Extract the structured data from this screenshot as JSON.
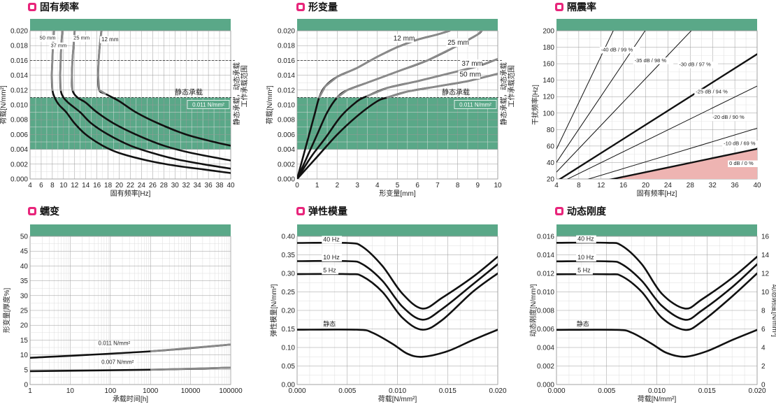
{
  "colors": {
    "accent": "#e8257b",
    "green": "#5aa888",
    "pink": "#eeb4b2",
    "dark": "#111111",
    "gray": "#888888"
  },
  "chart_data": [
    {
      "id": "c1",
      "type": "line",
      "title": "固有频率",
      "xlabel": "固有频率[Hz]",
      "ylabel": "荷载[N/mm²]",
      "x_ticks": [
        4,
        6,
        8,
        10,
        12,
        14,
        16,
        18,
        20,
        22,
        24,
        26,
        28,
        30,
        32,
        34,
        36,
        38,
        40
      ],
      "y_ticks": [
        "0.000",
        "0.002",
        "0.004",
        "0.006",
        "0.008",
        "0.010",
        "0.012",
        "0.014",
        "0.016",
        "0.018",
        "0.020"
      ],
      "xlim": [
        4,
        40
      ],
      "ylim": [
        0,
        0.02
      ],
      "band": {
        "range": [
          0.004,
          0.011
        ],
        "label": "0.011 N/mm²",
        "dashed_top": 0.016,
        "right_label_1": "工作承载范围",
        "right_label_2": "静态承载，动态承载",
        "static_label": "静态承载"
      },
      "series": [
        {
          "name": "50 mm",
          "points": [
            [
              8.3,
              0.02
            ],
            [
              8.1,
              0.018
            ],
            [
              8.0,
              0.016
            ],
            [
              7.9,
              0.014
            ],
            [
              8.0,
              0.012
            ],
            [
              8.4,
              0.011
            ],
            [
              9.2,
              0.01
            ],
            [
              10.5,
              0.009
            ],
            [
              12,
              0.0075
            ],
            [
              14,
              0.006
            ],
            [
              17,
              0.0045
            ],
            [
              20,
              0.0035
            ],
            [
              25,
              0.0025
            ],
            [
              30,
              0.0018
            ],
            [
              35,
              0.0013
            ],
            [
              40,
              0.0008
            ]
          ]
        },
        {
          "name": "37 mm",
          "points": [
            [
              9.8,
              0.02
            ],
            [
              9.6,
              0.018
            ],
            [
              9.5,
              0.016
            ],
            [
              9.4,
              0.014
            ],
            [
              9.5,
              0.012
            ],
            [
              10,
              0.011
            ],
            [
              11,
              0.0102
            ],
            [
              13,
              0.009
            ],
            [
              15,
              0.0075
            ],
            [
              18,
              0.006
            ],
            [
              22,
              0.0045
            ],
            [
              26,
              0.0035
            ],
            [
              30,
              0.0027
            ],
            [
              35,
              0.002
            ],
            [
              40,
              0.0014
            ]
          ]
        },
        {
          "name": "25 mm",
          "points": [
            [
              12.0,
              0.02
            ],
            [
              11.8,
              0.018
            ],
            [
              11.6,
              0.016
            ],
            [
              11.5,
              0.014
            ],
            [
              11.6,
              0.012
            ],
            [
              12.5,
              0.011
            ],
            [
              14,
              0.0103
            ],
            [
              16,
              0.009
            ],
            [
              19,
              0.0075
            ],
            [
              23,
              0.006
            ],
            [
              28,
              0.0045
            ],
            [
              33,
              0.0035
            ],
            [
              40,
              0.0025
            ]
          ]
        },
        {
          "name": "12 mm",
          "points": [
            [
              16.8,
              0.02
            ],
            [
              16.5,
              0.018
            ],
            [
              16.3,
              0.016
            ],
            [
              16.2,
              0.014
            ],
            [
              16.4,
              0.012
            ],
            [
              17.5,
              0.0115
            ],
            [
              20,
              0.0105
            ],
            [
              23,
              0.009
            ],
            [
              27,
              0.0075
            ],
            [
              32,
              0.006
            ],
            [
              37,
              0.005
            ],
            [
              40,
              0.0045
            ]
          ]
        }
      ]
    },
    {
      "id": "c2",
      "type": "line",
      "title": "形变量",
      "xlabel": "形变量[mm]",
      "ylabel": "荷载[N/mm²]",
      "x_ticks": [
        0,
        1,
        2,
        3,
        4,
        5,
        6,
        7,
        8,
        9,
        10
      ],
      "y_ticks": [
        "0.000",
        "0.002",
        "0.004",
        "0.006",
        "0.008",
        "0.010",
        "0.012",
        "0.014",
        "0.016",
        "0.018",
        "0.020"
      ],
      "xlim": [
        0,
        10
      ],
      "ylim": [
        0,
        0.02
      ],
      "band": {
        "range": [
          0.004,
          0.011
        ],
        "label": "0.011 N/mm²",
        "dashed_top": 0.016,
        "right_label_1": "工作承载范围",
        "right_label_2": "静态承载，动态承载",
        "static_label": "静态承载"
      },
      "series": [
        {
          "name": "12 mm",
          "points": [
            [
              0,
              0
            ],
            [
              0.3,
              0.003
            ],
            [
              0.6,
              0.006
            ],
            [
              0.9,
              0.009
            ],
            [
              1.1,
              0.011
            ],
            [
              1.4,
              0.0125
            ],
            [
              2,
              0.0138
            ],
            [
              3,
              0.015
            ],
            [
              4,
              0.0165
            ],
            [
              5,
              0.0178
            ],
            [
              6,
              0.0188
            ],
            [
              7,
              0.0195
            ],
            [
              7.6,
              0.02
            ]
          ]
        },
        {
          "name": "25 mm",
          "points": [
            [
              0,
              0
            ],
            [
              0.5,
              0.003
            ],
            [
              1,
              0.006
            ],
            [
              1.5,
              0.009
            ],
            [
              2,
              0.011
            ],
            [
              2.5,
              0.012
            ],
            [
              3.5,
              0.013
            ],
            [
              5,
              0.0145
            ],
            [
              6.5,
              0.016
            ],
            [
              8,
              0.018
            ],
            [
              9,
              0.0195
            ],
            [
              9.2,
              0.02
            ]
          ]
        },
        {
          "name": "37 mm",
          "points": [
            [
              0,
              0
            ],
            [
              0.7,
              0.003
            ],
            [
              1.4,
              0.0055
            ],
            [
              2.2,
              0.0085
            ],
            [
              3,
              0.0105
            ],
            [
              3.5,
              0.0112
            ],
            [
              4.5,
              0.0123
            ],
            [
              6,
              0.0132
            ],
            [
              7.5,
              0.0142
            ],
            [
              9,
              0.0152
            ],
            [
              10,
              0.0162
            ]
          ]
        },
        {
          "name": "50 mm",
          "points": [
            [
              0,
              0
            ],
            [
              1,
              0.003
            ],
            [
              2,
              0.006
            ],
            [
              3,
              0.0085
            ],
            [
              4,
              0.0105
            ],
            [
              4.5,
              0.011
            ],
            [
              5.5,
              0.0118
            ],
            [
              7,
              0.0125
            ],
            [
              8.5,
              0.0132
            ],
            [
              10,
              0.0142
            ]
          ]
        }
      ]
    },
    {
      "id": "c3",
      "type": "line",
      "title": "隔震率",
      "xlabel": "固有频率[Hz]",
      "ylabel": "干扰频率[Hz]",
      "x_ticks": [
        4,
        8,
        12,
        16,
        20,
        24,
        28,
        32,
        36,
        40
      ],
      "y_ticks": [
        20,
        40,
        60,
        80,
        100,
        120,
        140,
        160,
        180,
        200
      ],
      "xlim": [
        4,
        40
      ],
      "ylim": [
        20,
        200
      ],
      "series": [
        {
          "name": "-40 dB / 99 %",
          "k": 14.1,
          "bold": false
        },
        {
          "name": "-35 dB / 98 %",
          "k": 10.05,
          "bold": false
        },
        {
          "name": "-30 dB / 97 %",
          "k": 7.1,
          "bold": false
        },
        {
          "name": "-25 dB / 94 %",
          "k": 4.29,
          "bold": true
        },
        {
          "name": "-20 dB / 90 %",
          "k": 3.32,
          "bold": false
        },
        {
          "name": "-10 dB / 69 %",
          "k": 2.04,
          "bold": false
        },
        {
          "name": "0 dB / 0 %",
          "k": 1.414,
          "bold": true
        }
      ]
    },
    {
      "id": "c4",
      "type": "line",
      "title": "蠕变",
      "xlabel": "承载时间[h]",
      "ylabel": "形变量[厚度%]",
      "x_ticks": [
        "1",
        "10",
        "100",
        "1000",
        "10000",
        "100000"
      ],
      "y_ticks": [
        "0",
        "5",
        "10",
        "15",
        "20",
        "25",
        "30",
        "35",
        "40",
        "45",
        "50"
      ],
      "xlim": [
        1,
        100000
      ],
      "ylim": [
        0,
        50
      ],
      "xscale": "log",
      "series": [
        {
          "name": "0.011 N/mm²",
          "points": [
            [
              1,
              9
            ],
            [
              1000,
              11.2
            ],
            [
              100000,
              13.5
            ]
          ]
        },
        {
          "name": "0.007 N/mm²",
          "points": [
            [
              1,
              4.5
            ],
            [
              1000,
              5
            ],
            [
              100000,
              5.7
            ]
          ]
        }
      ]
    },
    {
      "id": "c5",
      "type": "line",
      "title": "弹性模量",
      "xlabel": "荷载[N/mm²]",
      "ylabel": "弹性模量[N/mm²]",
      "x_ticks": [
        "0.000",
        "0.005",
        "0.010",
        "0.015",
        "0.020"
      ],
      "y_ticks": [
        "0.00",
        "0.05",
        "0.10",
        "0.15",
        "0.20",
        "0.25",
        "0.30",
        "0.35",
        "0.40"
      ],
      "xlim": [
        0,
        0.02
      ],
      "ylim": [
        0,
        0.4
      ],
      "series": [
        {
          "name": "40 Hz",
          "points": [
            [
              0,
              0.382
            ],
            [
              0.005,
              0.382
            ],
            [
              0.0065,
              0.372
            ],
            [
              0.0085,
              0.32
            ],
            [
              0.0105,
              0.245
            ],
            [
              0.0125,
              0.205
            ],
            [
              0.0145,
              0.235
            ],
            [
              0.0175,
              0.29
            ],
            [
              0.02,
              0.345
            ]
          ]
        },
        {
          "name": "10 Hz",
          "points": [
            [
              0,
              0.333
            ],
            [
              0.005,
              0.333
            ],
            [
              0.0065,
              0.325
            ],
            [
              0.0085,
              0.28
            ],
            [
              0.0105,
              0.21
            ],
            [
              0.0125,
              0.175
            ],
            [
              0.0145,
              0.205
            ],
            [
              0.0175,
              0.27
            ],
            [
              0.02,
              0.325
            ]
          ]
        },
        {
          "name": "5 Hz",
          "points": [
            [
              0,
              0.298
            ],
            [
              0.005,
              0.298
            ],
            [
              0.0065,
              0.292
            ],
            [
              0.0085,
              0.25
            ],
            [
              0.0105,
              0.18
            ],
            [
              0.0125,
              0.148
            ],
            [
              0.0145,
              0.175
            ],
            [
              0.0175,
              0.25
            ],
            [
              0.02,
              0.3
            ]
          ]
        },
        {
          "name": "静态",
          "points": [
            [
              0,
              0.148
            ],
            [
              0.006,
              0.148
            ],
            [
              0.0075,
              0.14
            ],
            [
              0.0095,
              0.11
            ],
            [
              0.011,
              0.083
            ],
            [
              0.0125,
              0.075
            ],
            [
              0.015,
              0.09
            ],
            [
              0.0175,
              0.12
            ],
            [
              0.02,
              0.148
            ]
          ]
        }
      ]
    },
    {
      "id": "c6",
      "type": "line",
      "title": "动态刚度",
      "xlabel": "荷载[N/mm²]",
      "ylabel": "动态刚度[N/mm³]",
      "ylabel2": "动态刚度[N/mm³]",
      "x_ticks": [
        "0.000",
        "0.005",
        "0.010",
        "0.015",
        "0.020"
      ],
      "y_ticks": [
        "0.000",
        "0.002",
        "0.004",
        "0.006",
        "0.008",
        "0.010",
        "0.012",
        "0.014",
        "0.016"
      ],
      "y2_ticks": [
        "0",
        "2",
        "4",
        "6",
        "8",
        "10",
        "12",
        "14",
        "16"
      ],
      "xlim": [
        0,
        0.02
      ],
      "ylim": [
        0,
        0.016
      ],
      "series": [
        {
          "name": "40 Hz",
          "points": [
            [
              0,
              0.0153
            ],
            [
              0.005,
              0.0153
            ],
            [
              0.0065,
              0.015
            ],
            [
              0.0085,
              0.013
            ],
            [
              0.0105,
              0.0098
            ],
            [
              0.0128,
              0.0082
            ],
            [
              0.0145,
              0.0092
            ],
            [
              0.0175,
              0.0115
            ],
            [
              0.02,
              0.0138
            ]
          ]
        },
        {
          "name": "10 Hz",
          "points": [
            [
              0,
              0.0133
            ],
            [
              0.005,
              0.0133
            ],
            [
              0.0065,
              0.013
            ],
            [
              0.0085,
              0.0112
            ],
            [
              0.0105,
              0.0085
            ],
            [
              0.0128,
              0.007
            ],
            [
              0.0145,
              0.008
            ],
            [
              0.0175,
              0.0105
            ],
            [
              0.02,
              0.013
            ]
          ]
        },
        {
          "name": "5 Hz",
          "points": [
            [
              0,
              0.0119
            ],
            [
              0.005,
              0.0119
            ],
            [
              0.0065,
              0.0117
            ],
            [
              0.0085,
              0.01
            ],
            [
              0.0105,
              0.0072
            ],
            [
              0.0128,
              0.0059
            ],
            [
              0.0145,
              0.0068
            ],
            [
              0.0175,
              0.0095
            ],
            [
              0.02,
              0.012
            ]
          ]
        },
        {
          "name": "静态",
          "points": [
            [
              0,
              0.0059
            ],
            [
              0.006,
              0.0059
            ],
            [
              0.0075,
              0.0056
            ],
            [
              0.0095,
              0.0044
            ],
            [
              0.011,
              0.0034
            ],
            [
              0.0128,
              0.003
            ],
            [
              0.015,
              0.0036
            ],
            [
              0.0175,
              0.0048
            ],
            [
              0.02,
              0.0059
            ]
          ]
        }
      ]
    }
  ]
}
